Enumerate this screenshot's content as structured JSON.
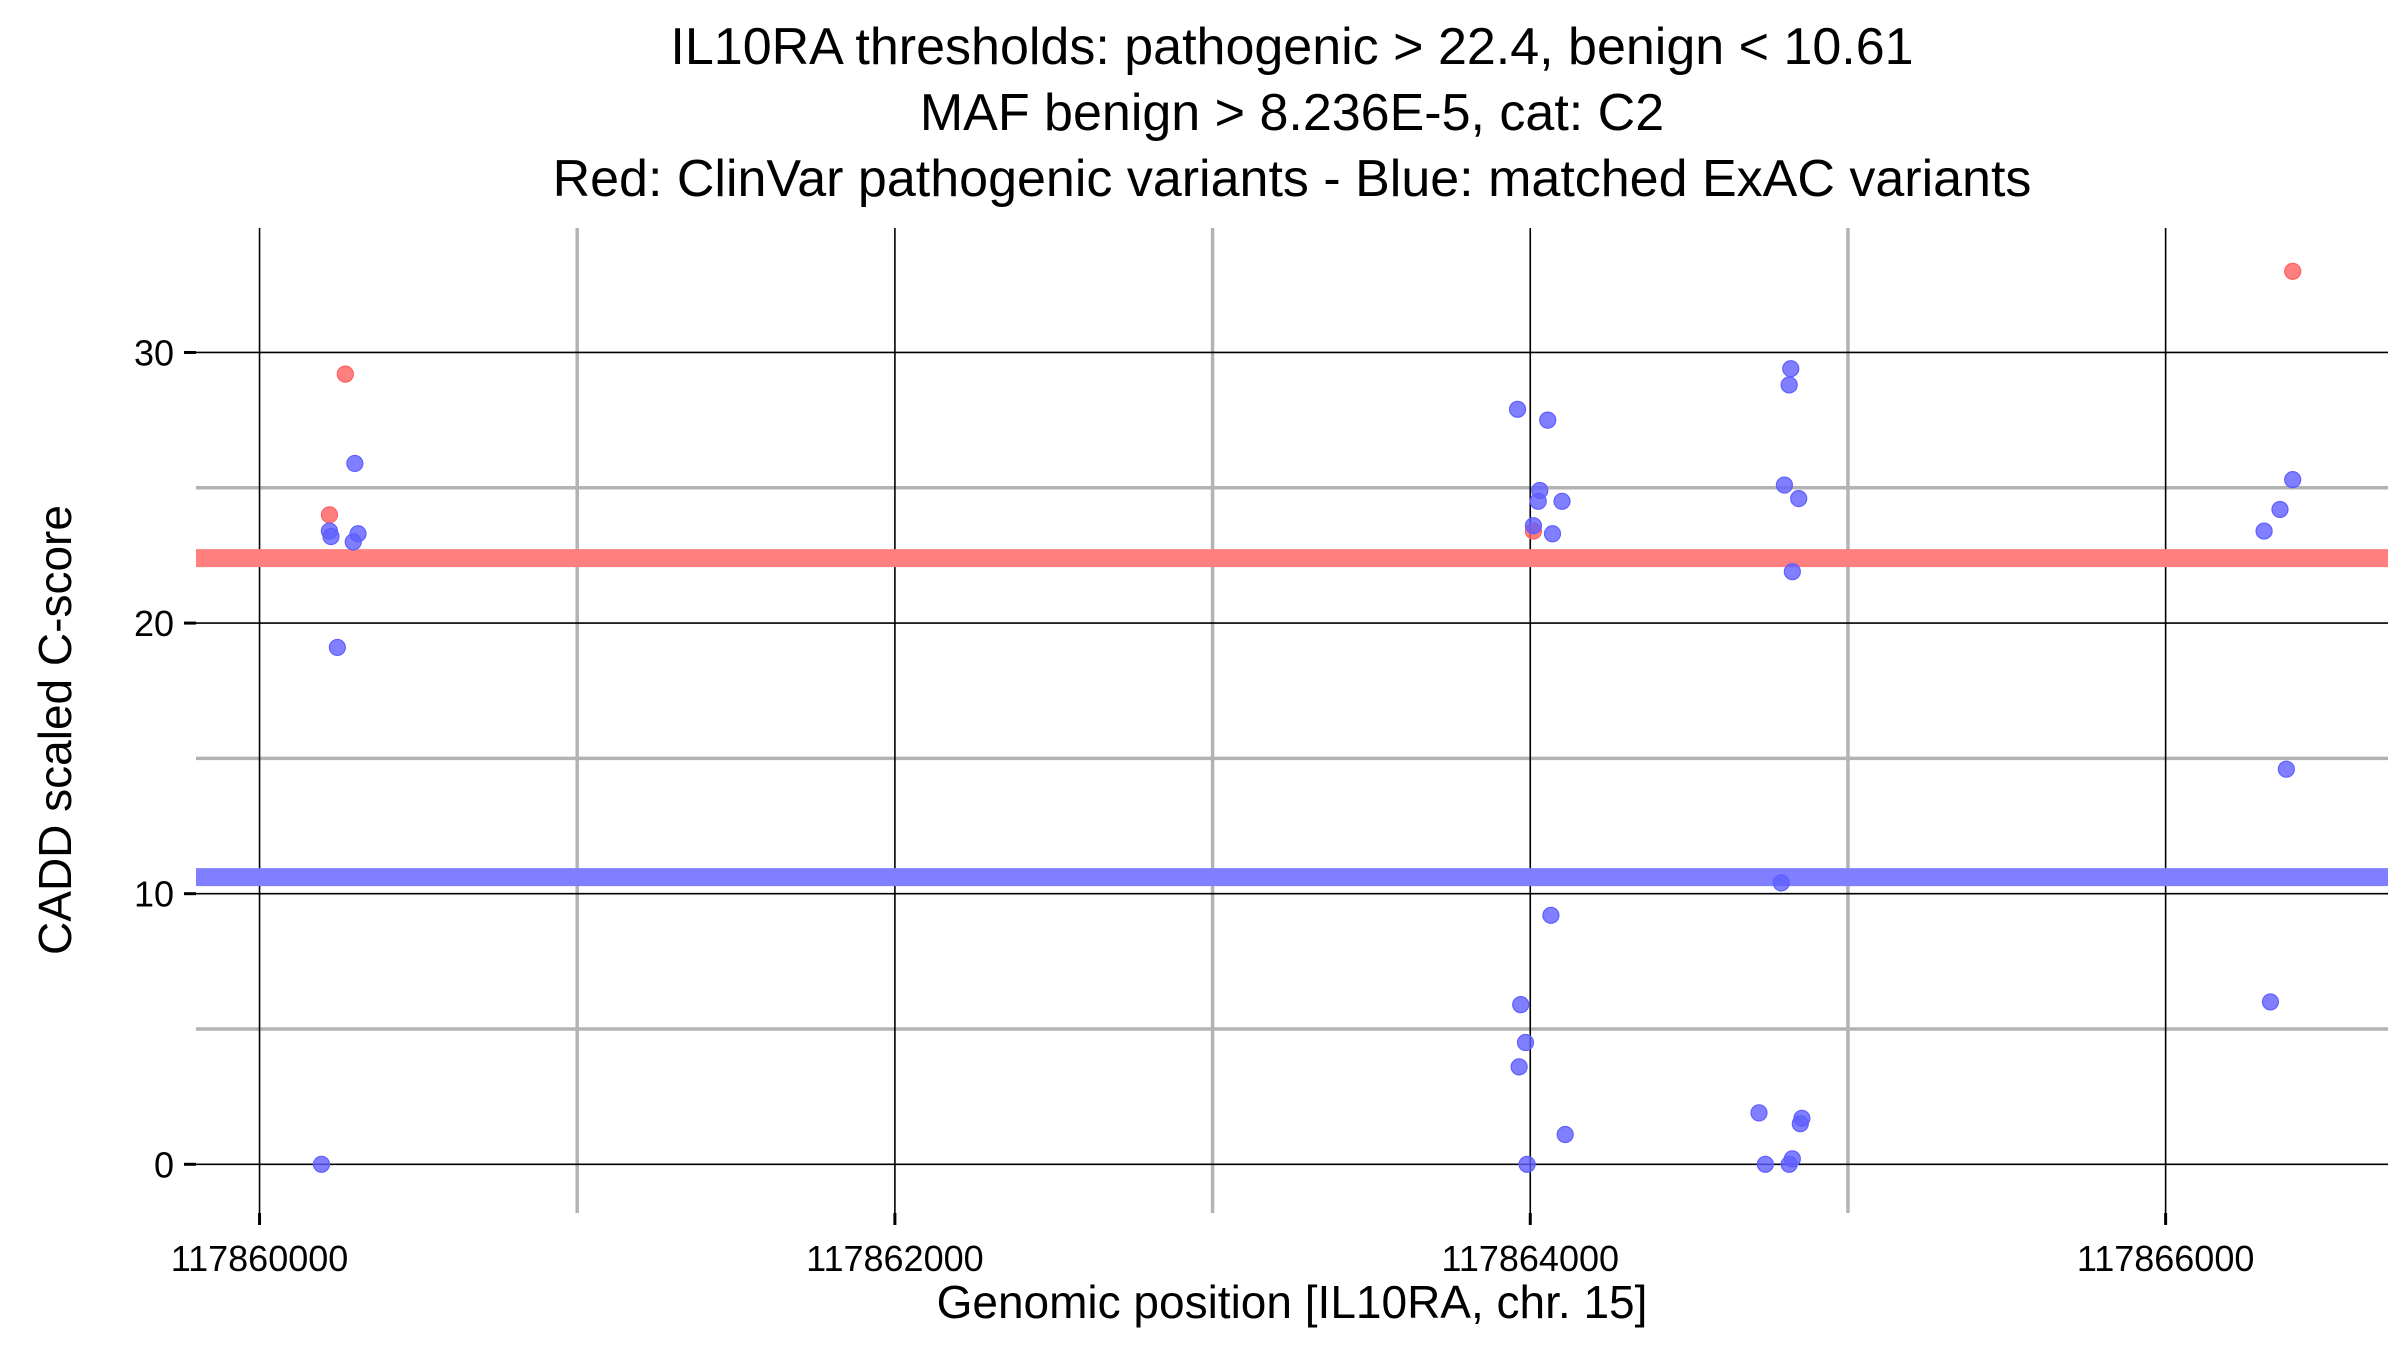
{
  "chart_data": {
    "type": "scatter",
    "title": [
      "IL10RA thresholds: pathogenic > 22.4, benign < 10.61",
      "MAF benign > 8.236E-5, cat: C2",
      "Red: ClinVar pathogenic variants - Blue: matched ExAC variants"
    ],
    "xlabel": "Genomic position [IL10RA, chr. 15]",
    "ylabel": "CADD scaled C-score",
    "xlim": [
      117859800,
      117866700
    ],
    "ylim": [
      -1.8,
      34.6
    ],
    "x_ticks": [
      117860000,
      117862000,
      117864000,
      117866000
    ],
    "x_tick_labels": [
      "117860000",
      "117862000",
      "117864000",
      "117866000"
    ],
    "x_minor_gridlines": [
      117861000,
      117863000,
      117865000
    ],
    "y_ticks": [
      0,
      10,
      20,
      30
    ],
    "y_tick_labels": [
      "0",
      "10",
      "20",
      "30"
    ],
    "y_minor_gridlines": [
      5,
      15,
      25
    ],
    "grid": true,
    "thresholds": [
      {
        "name": "pathogenic",
        "value": 22.4,
        "color": "#ff7f7f"
      },
      {
        "name": "benign",
        "value": 10.61,
        "color": "#7f7fff"
      }
    ],
    "series": [
      {
        "name": "ClinVar pathogenic variants",
        "color": "#ff5f5f",
        "points": [
          {
            "x": 117860270,
            "y": 29.2
          },
          {
            "x": 117860220,
            "y": 24.0
          },
          {
            "x": 117864010,
            "y": 23.4
          },
          {
            "x": 117866400,
            "y": 33.0
          }
        ]
      },
      {
        "name": "matched ExAC variants",
        "color": "#5f5fff",
        "points": [
          {
            "x": 117860300,
            "y": 25.9
          },
          {
            "x": 117860220,
            "y": 23.4
          },
          {
            "x": 117860225,
            "y": 23.2
          },
          {
            "x": 117860310,
            "y": 23.3
          },
          {
            "x": 117860295,
            "y": 23.0
          },
          {
            "x": 117860245,
            "y": 19.1
          },
          {
            "x": 117860195,
            "y": 0.0
          },
          {
            "x": 117863960,
            "y": 27.9
          },
          {
            "x": 117864055,
            "y": 27.5
          },
          {
            "x": 117864030,
            "y": 24.9
          },
          {
            "x": 117864025,
            "y": 24.5
          },
          {
            "x": 117864100,
            "y": 24.5
          },
          {
            "x": 117864010,
            "y": 23.6
          },
          {
            "x": 117864070,
            "y": 23.3
          },
          {
            "x": 117864065,
            "y": 9.2
          },
          {
            "x": 117863970,
            "y": 5.9
          },
          {
            "x": 117863985,
            "y": 4.5
          },
          {
            "x": 117863965,
            "y": 3.6
          },
          {
            "x": 117864110,
            "y": 1.1
          },
          {
            "x": 117863990,
            "y": 0.0
          },
          {
            "x": 117864820,
            "y": 29.4
          },
          {
            "x": 117864815,
            "y": 28.8
          },
          {
            "x": 117864800,
            "y": 25.1
          },
          {
            "x": 117864845,
            "y": 24.6
          },
          {
            "x": 117864825,
            "y": 21.9
          },
          {
            "x": 117864790,
            "y": 10.4
          },
          {
            "x": 117864720,
            "y": 1.9
          },
          {
            "x": 117864855,
            "y": 1.7
          },
          {
            "x": 117864850,
            "y": 1.5
          },
          {
            "x": 117864825,
            "y": 0.2
          },
          {
            "x": 117864740,
            "y": 0.0
          },
          {
            "x": 117864815,
            "y": 0.0
          },
          {
            "x": 117866400,
            "y": 25.3
          },
          {
            "x": 117866360,
            "y": 24.2
          },
          {
            "x": 117866310,
            "y": 23.4
          },
          {
            "x": 117866380,
            "y": 14.6
          },
          {
            "x": 117866330,
            "y": 6.0
          }
        ]
      }
    ]
  }
}
